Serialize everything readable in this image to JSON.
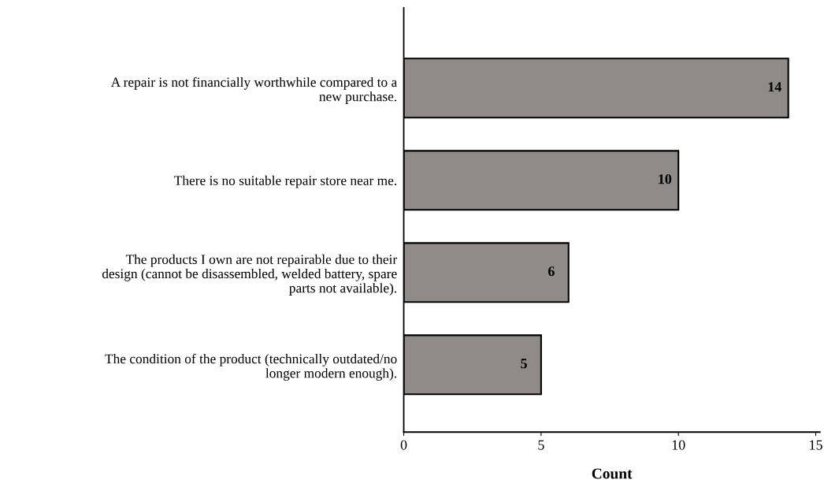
{
  "chart_data": {
    "type": "bar",
    "orientation": "horizontal",
    "xlabel": "Count",
    "categories": [
      "A repair is not financially worthwhile compared to a\nnew purchase.",
      "There is no suitable repair store near me.",
      "The products I own are not repairable due to their\ndesign (cannot be disassembled, welded battery, spare\nparts not available).",
      "The condition of the product (technically outdated/no\nlonger modern enough)."
    ],
    "values": [
      14,
      10,
      6,
      5
    ],
    "color": "#8f8b89",
    "xlim": [
      0,
      15.15
    ],
    "xticks": [
      0,
      5,
      10,
      15
    ],
    "grid": false,
    "data_labels": true
  }
}
